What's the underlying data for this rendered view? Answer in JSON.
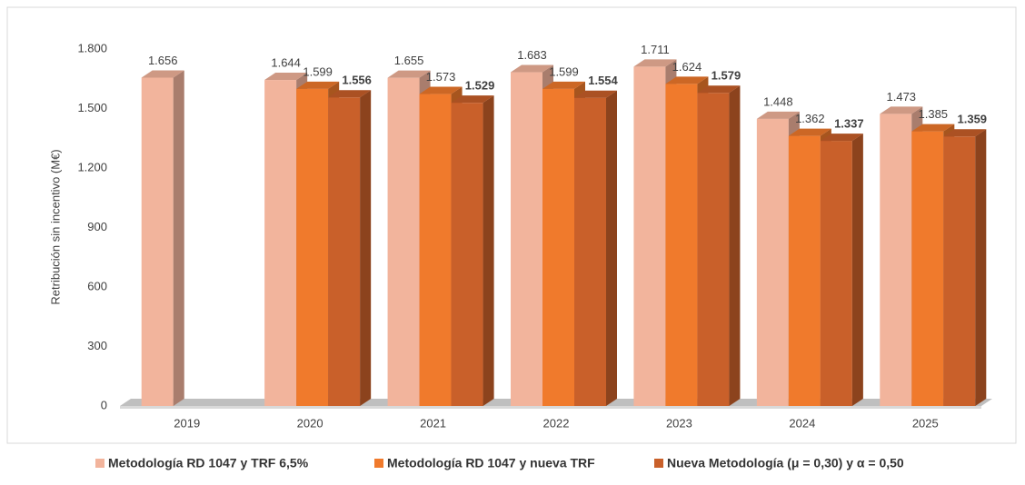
{
  "chart_data": {
    "type": "bar3d",
    "y_label": "Retribución sin incentivo (M€)",
    "categories": [
      "2019",
      "2020",
      "2021",
      "2022",
      "2023",
      "2024",
      "2025"
    ],
    "series": [
      {
        "name": "Metodología RD 1047 y TRF 6,5%",
        "color": "#f2b49c",
        "values": [
          1656,
          1644,
          1655,
          1683,
          1711,
          1448,
          1473
        ],
        "value_labels": [
          "1.656",
          "1.644",
          "1.655",
          "1.683",
          "1.711",
          "1.448",
          "1.473"
        ]
      },
      {
        "name": "Metodología RD 1047 y nueva TRF",
        "color": "#f07a2c",
        "values": [
          null,
          1599,
          1573,
          1599,
          1624,
          1362,
          1385
        ],
        "value_labels": [
          null,
          "1.599",
          "1.573",
          "1.599",
          "1.624",
          "1.362",
          "1.385"
        ]
      },
      {
        "name": "Nueva Metodología  (μ = 0,30) y α = 0,50",
        "color": "#c9602a",
        "values": [
          null,
          1556,
          1529,
          1554,
          1579,
          1337,
          1359
        ],
        "value_labels": [
          null,
          "1.556",
          "1.529",
          "1.554",
          "1.579",
          "1.337",
          "1.359"
        ]
      }
    ],
    "ylim": [
      0,
      1800
    ],
    "yticks": [
      0,
      300,
      600,
      900,
      {
        "value": 1200,
        "label": "1.200"
      },
      {
        "value": 1500,
        "label": "1.500"
      },
      {
        "value": 1800,
        "label": "1.800"
      }
    ],
    "legend": "bottom"
  }
}
